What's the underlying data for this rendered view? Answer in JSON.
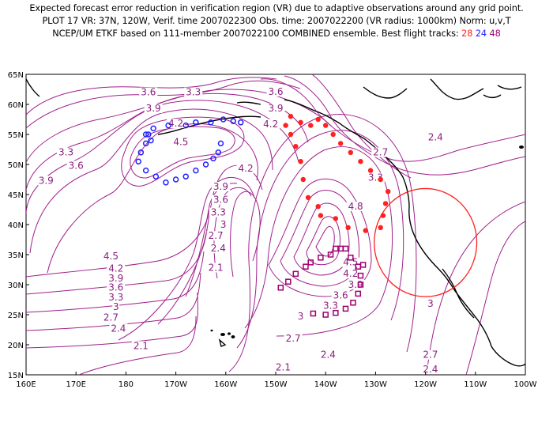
{
  "title": {
    "line1": "Expected forecast error reduction in verification region (VR) due to adaptive observations around any grid point.",
    "line2": "PLOT 17 VR: 37N, 120W, Verif. time 2007022300 Obs. time: 2007022200 (VR radius: 1000km) Norm: u,v,T",
    "line3_prefix": "NCEP/UM ETKF based on 111-member 2007022100 COMBINED ensemble.  Best flight tracks:",
    "track_a": "28",
    "track_b": "24",
    "track_c": "48"
  },
  "colors": {
    "contour": "#a0208c",
    "track_28": "#ff2020",
    "track_24": "#2020ff",
    "track_48": "#a00070",
    "verification_circle": "#ff2020"
  },
  "map": {
    "lon_ticks": [
      "160E",
      "170E",
      "180",
      "170W",
      "160W",
      "150W",
      "140W",
      "130W",
      "120W",
      "110W",
      "100W"
    ],
    "lat_ticks": [
      "15N",
      "20N",
      "25N",
      "30N",
      "35N",
      "40N",
      "45N",
      "50N",
      "55N",
      "60N",
      "65N"
    ],
    "contour_labels": [
      {
        "text": "3.6",
        "lon": -175.5,
        "lat": 61.5
      },
      {
        "text": "3.3",
        "lon": -166.5,
        "lat": 61.5
      },
      {
        "text": "3.9",
        "lon": -174.5,
        "lat": 58.8
      },
      {
        "text": "4.2",
        "lon": -170,
        "lat": 56.3
      },
      {
        "text": "4.5",
        "lon": -169,
        "lat": 53.2
      },
      {
        "text": "3.3",
        "lon": -192,
        "lat": 51.5
      },
      {
        "text": "3.6",
        "lon": -190,
        "lat": 49.3
      },
      {
        "text": "3.9",
        "lon": -196,
        "lat": 46.8
      },
      {
        "text": "3.6",
        "lon": -150,
        "lat": 61.6
      },
      {
        "text": "3.9",
        "lon": -150,
        "lat": 58.8
      },
      {
        "text": "4.2",
        "lon": -151,
        "lat": 56.2
      },
      {
        "text": "4.2",
        "lon": -156,
        "lat": 48.8
      },
      {
        "text": "3.9",
        "lon": -161,
        "lat": 45.8
      },
      {
        "text": "3.6",
        "lon": -161,
        "lat": 43.6
      },
      {
        "text": "3.3",
        "lon": -161.5,
        "lat": 41.5
      },
      {
        "text": "3",
        "lon": -160.5,
        "lat": 39.5
      },
      {
        "text": "2.7",
        "lon": -162,
        "lat": 37.6
      },
      {
        "text": "2.4",
        "lon": -161.5,
        "lat": 35.5
      },
      {
        "text": "2.1",
        "lon": -162,
        "lat": 32.3
      },
      {
        "text": "4.5",
        "lon": -183,
        "lat": 34.2
      },
      {
        "text": "4.2",
        "lon": -182,
        "lat": 32.2
      },
      {
        "text": "3.9",
        "lon": -182,
        "lat": 30.5
      },
      {
        "text": "3.6",
        "lon": -182,
        "lat": 29.0
      },
      {
        "text": "3.3",
        "lon": -182,
        "lat": 27.4
      },
      {
        "text": "3",
        "lon": -182,
        "lat": 25.8
      },
      {
        "text": "2.7",
        "lon": -183,
        "lat": 24.0
      },
      {
        "text": "2.4",
        "lon": -181.5,
        "lat": 22.2
      },
      {
        "text": "2.1",
        "lon": -177,
        "lat": 19.3
      },
      {
        "text": "4.8",
        "lon": -134,
        "lat": 42.5
      },
      {
        "text": "4.5",
        "lon": -135,
        "lat": 33.2
      },
      {
        "text": "4.2",
        "lon": -135,
        "lat": 31.3
      },
      {
        "text": "3.9",
        "lon": -134,
        "lat": 29.5
      },
      {
        "text": "3.6",
        "lon": -137,
        "lat": 27.7
      },
      {
        "text": "3.3",
        "lon": -139,
        "lat": 26.0
      },
      {
        "text": "3",
        "lon": -145,
        "lat": 24.2
      },
      {
        "text": "2.7",
        "lon": -146.5,
        "lat": 20.5
      },
      {
        "text": "2.4",
        "lon": -139.5,
        "lat": 17.8
      },
      {
        "text": "2.1",
        "lon": -148.5,
        "lat": 15.7
      },
      {
        "text": "2.7",
        "lon": -129,
        "lat": 51.5
      },
      {
        "text": "2.4",
        "lon": -118,
        "lat": 54.0
      },
      {
        "text": "3.3",
        "lon": -130,
        "lat": 47.3
      },
      {
        "text": "3",
        "lon": -119,
        "lat": 26.3
      },
      {
        "text": "2.7",
        "lon": -119,
        "lat": 17.8
      },
      {
        "text": "2.4",
        "lon": -119,
        "lat": 15.4
      }
    ],
    "track_28": [
      [
        -147,
        58
      ],
      [
        -145,
        57
      ],
      [
        -143,
        56.5
      ],
      [
        -148,
        56.5
      ],
      [
        -147,
        55
      ],
      [
        -146,
        53
      ],
      [
        -145,
        50.5
      ],
      [
        -144.5,
        47.5
      ],
      [
        -143.5,
        44.5
      ],
      [
        -141.5,
        43
      ],
      [
        -141,
        41.5
      ],
      [
        -138,
        41
      ],
      [
        -135.5,
        39.5
      ],
      [
        -132,
        39
      ],
      [
        -129,
        39.5
      ],
      [
        -128.5,
        41.5
      ],
      [
        -128,
        43.5
      ],
      [
        -127.5,
        45.5
      ],
      [
        -129,
        47.5
      ],
      [
        -131,
        49
      ],
      [
        -133,
        50.5
      ],
      [
        -135,
        52
      ],
      [
        -137,
        53.5
      ],
      [
        -138.5,
        55
      ],
      [
        -140,
        56.5
      ],
      [
        -141.5,
        57.5
      ]
    ],
    "track_24": [
      [
        -157,
        57
      ],
      [
        -158.5,
        57.2
      ],
      [
        -160.5,
        57.5
      ],
      [
        -163,
        57
      ],
      [
        -166,
        57
      ],
      [
        -168,
        56.5
      ],
      [
        -171.5,
        56.5
      ],
      [
        -174.5,
        56
      ],
      [
        -175.5,
        55
      ],
      [
        -176,
        53.5
      ],
      [
        -177,
        52
      ],
      [
        -177.5,
        50.5
      ],
      [
        -176,
        49
      ],
      [
        -174,
        48
      ],
      [
        -172,
        47
      ],
      [
        -170,
        47.5
      ],
      [
        -168,
        48
      ],
      [
        -166,
        49
      ],
      [
        -164,
        50
      ],
      [
        -162.5,
        51
      ],
      [
        -161.5,
        52
      ],
      [
        -161,
        53.5
      ],
      [
        -176,
        55
      ],
      [
        -175,
        54
      ]
    ],
    "track_48": [
      [
        -138,
        36
      ],
      [
        -137,
        36
      ],
      [
        -136,
        36
      ],
      [
        -139,
        35
      ],
      [
        -141,
        34.5
      ],
      [
        -143,
        33.7
      ],
      [
        -144,
        33
      ],
      [
        -146,
        31.8
      ],
      [
        -147.5,
        30.5
      ],
      [
        -149,
        29.5
      ],
      [
        -135,
        34.5
      ],
      [
        -133.5,
        33
      ],
      [
        -133,
        31.5
      ],
      [
        -133,
        30
      ],
      [
        -133.5,
        28.5
      ],
      [
        -134.5,
        27
      ],
      [
        -136,
        26
      ],
      [
        -138,
        25.3
      ],
      [
        -140,
        25
      ],
      [
        -142.5,
        25.2
      ],
      [
        -132.5,
        33.3
      ]
    ],
    "verification_circle": {
      "lon": -120,
      "lat": 37,
      "radius_km": 1000
    }
  }
}
